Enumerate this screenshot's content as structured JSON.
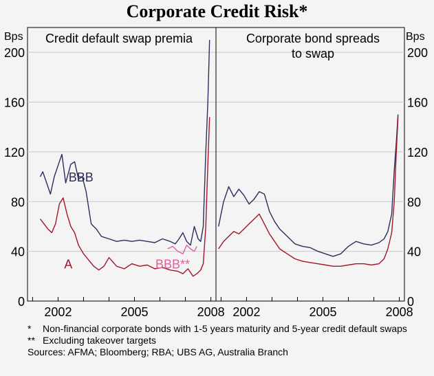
{
  "chart_data": {
    "type": "line",
    "title": "Corporate Credit Risk*",
    "ylabel": "Bps",
    "ylim": [
      0,
      220
    ],
    "yticks": [
      0,
      40,
      80,
      120,
      160,
      200
    ],
    "panels": [
      {
        "title_lines": [
          "Credit default swap premia"
        ],
        "xlim": [
          2000.8,
          2008.2
        ],
        "xticks": [
          2002,
          2005,
          2008
        ],
        "series": [
          {
            "name": "BBB",
            "color": "#2b2d5a",
            "label_color": "#2b2d5a",
            "label_at": [
              2002.9,
              100
            ],
            "x": [
              2001.3,
              2001.4,
              2001.55,
              2001.7,
              2001.85,
              2002.0,
              2002.15,
              2002.3,
              2002.5,
              2002.65,
              2002.8,
              2002.95,
              2003.1,
              2003.3,
              2003.5,
              2003.7,
              2004.0,
              2004.3,
              2004.6,
              2004.9,
              2005.2,
              2005.5,
              2005.8,
              2006.1,
              2006.4,
              2006.6,
              2006.75,
              2006.9,
              2007.05,
              2007.2,
              2007.35,
              2007.5,
              2007.6,
              2007.7,
              2007.8,
              2007.88,
              2007.95
            ],
            "values": [
              100,
              104,
              95,
              86,
              100,
              109,
              118,
              95,
              110,
              112,
              98,
              100,
              88,
              62,
              58,
              52,
              50,
              48,
              49,
              48,
              49,
              48,
              47,
              50,
              48,
              46,
              50,
              55,
              48,
              45,
              60,
              50,
              48,
              60,
              120,
              160,
              210
            ]
          },
          {
            "name": "A",
            "color": "#a3142a",
            "label_color": "#a3142a",
            "label_at": [
              2002.4,
              30
            ],
            "x": [
              2001.3,
              2001.45,
              2001.6,
              2001.75,
              2001.9,
              2002.05,
              2002.2,
              2002.35,
              2002.5,
              2002.65,
              2002.8,
              2003.0,
              2003.2,
              2003.4,
              2003.6,
              2003.8,
              2004.0,
              2004.3,
              2004.6,
              2004.9,
              2005.2,
              2005.5,
              2005.8,
              2006.1,
              2006.4,
              2006.7,
              2006.9,
              2007.1,
              2007.3,
              2007.45,
              2007.6,
              2007.7,
              2007.8,
              2007.88,
              2007.95
            ],
            "values": [
              66,
              62,
              58,
              55,
              62,
              78,
              83,
              70,
              60,
              55,
              45,
              38,
              33,
              28,
              25,
              28,
              35,
              28,
              26,
              30,
              28,
              29,
              26,
              27,
              25,
              24,
              22,
              26,
              20,
              22,
              25,
              30,
              60,
              110,
              148
            ]
          },
          {
            "name": "BBB**",
            "color": "#e0609a",
            "label_color": "#e0609a",
            "label_at": [
              2006.5,
              30
            ],
            "x": [
              2006.3,
              2006.5,
              2006.7,
              2006.9,
              2007.05,
              2007.2,
              2007.35,
              2007.45
            ],
            "values": [
              42,
              44,
              40,
              38,
              45,
              42,
              40,
              44
            ]
          }
        ]
      },
      {
        "title_lines": [
          "Corporate bond spreads",
          "to swap"
        ],
        "xlim": [
          2000.8,
          2008.2
        ],
        "xticks": [
          2002,
          2005,
          2008
        ],
        "series": [
          {
            "name": "BBB",
            "color": "#2b2d5a",
            "x": [
              2000.9,
              2001.1,
              2001.3,
              2001.5,
              2001.7,
              2001.9,
              2002.1,
              2002.3,
              2002.5,
              2002.7,
              2002.9,
              2003.1,
              2003.3,
              2003.6,
              2003.9,
              2004.2,
              2004.5,
              2004.8,
              2005.1,
              2005.4,
              2005.7,
              2006.0,
              2006.3,
              2006.6,
              2006.9,
              2007.2,
              2007.4,
              2007.55,
              2007.7,
              2007.8,
              2007.88,
              2007.95
            ],
            "values": [
              60,
              80,
              92,
              84,
              90,
              85,
              78,
              82,
              88,
              86,
              72,
              64,
              58,
              52,
              46,
              44,
              43,
              40,
              38,
              36,
              38,
              44,
              48,
              46,
              45,
              47,
              50,
              56,
              70,
              105,
              128,
              150
            ]
          },
          {
            "name": "A",
            "color": "#a3142a",
            "x": [
              2000.9,
              2001.1,
              2001.3,
              2001.5,
              2001.7,
              2001.9,
              2002.1,
              2002.3,
              2002.5,
              2002.7,
              2002.9,
              2003.1,
              2003.3,
              2003.6,
              2003.9,
              2004.2,
              2004.5,
              2004.8,
              2005.1,
              2005.4,
              2005.7,
              2006.0,
              2006.3,
              2006.6,
              2006.9,
              2007.2,
              2007.4,
              2007.55,
              2007.7,
              2007.8,
              2007.88,
              2007.95
            ],
            "values": [
              42,
              48,
              52,
              56,
              54,
              58,
              62,
              66,
              70,
              62,
              54,
              48,
              42,
              38,
              34,
              32,
              31,
              30,
              29,
              28,
              28,
              29,
              30,
              30,
              29,
              30,
              34,
              42,
              55,
              80,
              120,
              148
            ]
          }
        ]
      }
    ],
    "footnotes": [
      {
        "mark": "*",
        "text": "Non-financial corporate bonds with 1-5 years maturity and 5-year credit default swaps"
      },
      {
        "mark": "**",
        "text": "Excluding takeover targets"
      }
    ],
    "sources": "Sources: AFMA; Bloomberg; RBA; UBS AG, Australia Branch"
  }
}
